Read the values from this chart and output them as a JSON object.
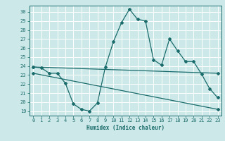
{
  "xlabel": "Humidex (Indice chaleur)",
  "bg_color": "#cce8e8",
  "grid_color": "#ffffff",
  "line_color": "#1a6b6b",
  "xlim": [
    -0.5,
    23.5
  ],
  "ylim": [
    18.5,
    30.7
  ],
  "yticks": [
    19,
    20,
    21,
    22,
    23,
    24,
    25,
    26,
    27,
    28,
    29,
    30
  ],
  "xticks": [
    0,
    1,
    2,
    3,
    4,
    5,
    6,
    7,
    8,
    9,
    10,
    11,
    12,
    13,
    14,
    15,
    16,
    17,
    18,
    19,
    20,
    21,
    22,
    23
  ],
  "line1_x": [
    0,
    1,
    2,
    3,
    4,
    5,
    6,
    7,
    8,
    9,
    10,
    11,
    12,
    13,
    14,
    15,
    16,
    17,
    18,
    19,
    20,
    21,
    22,
    23
  ],
  "line1_y": [
    23.9,
    23.8,
    23.2,
    23.2,
    22.1,
    19.8,
    19.2,
    19.0,
    19.9,
    23.9,
    26.7,
    28.8,
    30.3,
    29.2,
    29.0,
    24.7,
    24.1,
    27.0,
    25.7,
    24.5,
    24.5,
    23.1,
    21.5,
    20.5
  ],
  "line2_x": [
    0,
    23
  ],
  "line2_y": [
    23.9,
    23.2
  ],
  "line3_x": [
    0,
    23
  ],
  "line3_y": [
    23.2,
    19.2
  ],
  "marker": "D",
  "markersize": 2.0,
  "linewidth": 0.9,
  "tick_fontsize": 5.0,
  "xlabel_fontsize": 5.5
}
